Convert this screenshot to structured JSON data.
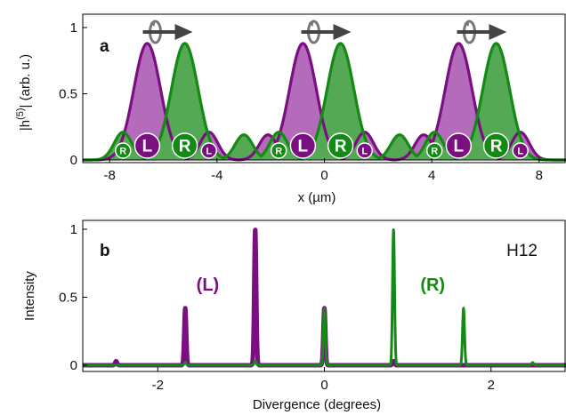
{
  "colors": {
    "left": "#7b0f82",
    "left_fill": "#b46bbb",
    "right": "#138a13",
    "right_fill": "#55a955",
    "marker_bg_left": "#7b0f82",
    "marker_bg_right": "#138a13",
    "arrow": "#444444"
  },
  "chart_data": [
    {
      "id": "a",
      "type": "area",
      "panel_letter": "a",
      "xlabel": "x (µm)",
      "ylabel": "|h(5)| (arb. u.)",
      "ylabel_main": "|h",
      "ylabel_sup": "(5)",
      "ylabel_tail": "| (arb. u.)",
      "xlim": [
        -9,
        9
      ],
      "ylim": [
        0,
        1
      ],
      "xticks": [
        -8,
        -4,
        0,
        4,
        8
      ],
      "xtick_labels": [
        "-8",
        "-4",
        "0",
        "4",
        "8"
      ],
      "yticks": [
        0,
        0.5,
        1
      ],
      "ytick_labels": [
        "0",
        "0.5",
        "1"
      ],
      "period": 5.8,
      "cell_centers": [
        -5.8,
        0,
        5.8
      ],
      "series": [
        {
          "name": "L",
          "color_key": "left",
          "peaks": [
            {
              "x": -6.6,
              "y": 0.88,
              "w": 0.5
            },
            {
              "x": -4.3,
              "y": 0.21,
              "w": 0.33
            },
            {
              "x": -0.8,
              "y": 0.88,
              "w": 0.5
            },
            {
              "x": 1.5,
              "y": 0.21,
              "w": 0.33
            },
            {
              "x": 5.0,
              "y": 0.88,
              "w": 0.5
            },
            {
              "x": 7.3,
              "y": 0.21,
              "w": 0.33
            },
            {
              "x": -2.1,
              "y": 0.19,
              "w": 0.33
            },
            {
              "x": 3.7,
              "y": 0.19,
              "w": 0.33
            }
          ]
        },
        {
          "name": "R",
          "color_key": "right",
          "peaks": [
            {
              "x": -7.5,
              "y": 0.21,
              "w": 0.33
            },
            {
              "x": -5.2,
              "y": 0.88,
              "w": 0.5
            },
            {
              "x": -1.7,
              "y": 0.21,
              "w": 0.33
            },
            {
              "x": 0.6,
              "y": 0.88,
              "w": 0.5
            },
            {
              "x": 4.1,
              "y": 0.21,
              "w": 0.33
            },
            {
              "x": 6.4,
              "y": 0.88,
              "w": 0.5
            },
            {
              "x": -3.0,
              "y": 0.19,
              "w": 0.33
            },
            {
              "x": 2.8,
              "y": 0.19,
              "w": 0.33
            }
          ]
        }
      ],
      "markers": [
        {
          "x": -7.5,
          "label": "R",
          "size": "small",
          "color_key": "right"
        },
        {
          "x": -6.6,
          "label": "L",
          "size": "large",
          "color_key": "left"
        },
        {
          "x": -5.2,
          "label": "R",
          "size": "large",
          "color_key": "right"
        },
        {
          "x": -4.3,
          "label": "L",
          "size": "small",
          "color_key": "left"
        },
        {
          "x": -1.7,
          "label": "R",
          "size": "small",
          "color_key": "right"
        },
        {
          "x": -0.8,
          "label": "L",
          "size": "large",
          "color_key": "left"
        },
        {
          "x": 0.6,
          "label": "R",
          "size": "large",
          "color_key": "right"
        },
        {
          "x": 1.5,
          "label": "L",
          "size": "small",
          "color_key": "left"
        },
        {
          "x": 4.1,
          "label": "R",
          "size": "small",
          "color_key": "right"
        },
        {
          "x": 5.0,
          "label": "L",
          "size": "large",
          "color_key": "left"
        },
        {
          "x": 6.4,
          "label": "R",
          "size": "large",
          "color_key": "right"
        },
        {
          "x": 7.3,
          "label": "L",
          "size": "small",
          "color_key": "left"
        }
      ],
      "rotation_arrows_x": [
        -5.9,
        0.0,
        5.8
      ]
    },
    {
      "id": "b",
      "type": "line",
      "panel_letter": "b",
      "annotation": "H12",
      "xlabel": "Divergence (degrees)",
      "ylabel": "Intensity",
      "xlim": [
        -2.9,
        2.9
      ],
      "ylim": [
        0,
        1
      ],
      "xticks": [
        -2,
        0,
        2
      ],
      "xtick_labels": [
        "-2",
        "0",
        "2"
      ],
      "yticks": [
        0,
        0.5,
        1
      ],
      "ytick_labels": [
        "0",
        "0.5",
        "1"
      ],
      "series": [
        {
          "name": "(L)",
          "color_key": "left",
          "stroke_width": 5,
          "peaks": [
            {
              "x": -2.5,
              "y": 0.03,
              "w": 0.012
            },
            {
              "x": -1.67,
              "y": 0.42,
              "w": 0.012
            },
            {
              "x": -0.83,
              "y": 1.0,
              "w": 0.012
            },
            {
              "x": 0.0,
              "y": 0.42,
              "w": 0.012
            },
            {
              "x": 0.83,
              "y": 0.03,
              "w": 0.012
            }
          ]
        },
        {
          "name": "(R)",
          "color_key": "right",
          "stroke_width": 3,
          "peaks": [
            {
              "x": -1.67,
              "y": 0.02,
              "w": 0.012
            },
            {
              "x": -0.83,
              "y": 0.03,
              "w": 0.012
            },
            {
              "x": 0.0,
              "y": 0.42,
              "w": 0.012
            },
            {
              "x": 0.83,
              "y": 1.0,
              "w": 0.012
            },
            {
              "x": 1.67,
              "y": 0.42,
              "w": 0.012
            },
            {
              "x": 2.5,
              "y": 0.02,
              "w": 0.012
            }
          ]
        }
      ],
      "labels": [
        {
          "text": "(L)",
          "color_key": "left",
          "x": -1.4,
          "y": 0.55
        },
        {
          "text": "(R)",
          "color_key": "right",
          "x": 1.3,
          "y": 0.55
        }
      ]
    }
  ]
}
